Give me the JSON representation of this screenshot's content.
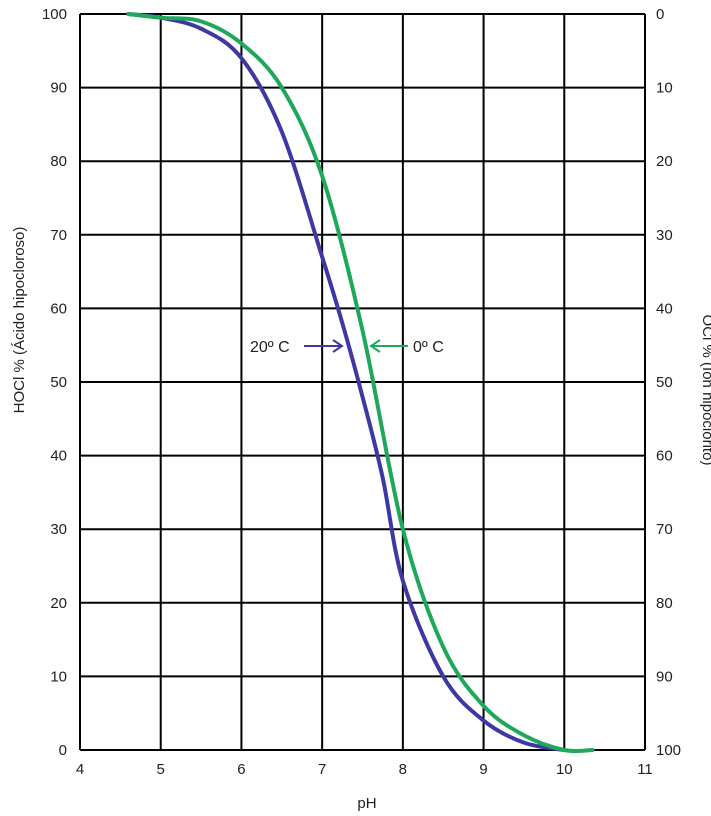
{
  "chart_data": {
    "type": "line",
    "xlabel": "pH",
    "ylabel_left": "HOCl % (Ácido hipocloroso)",
    "ylabel_right": "OCl % (Ion hipoclorito)",
    "xlim": [
      4,
      11
    ],
    "ylim": [
      0,
      100
    ],
    "x_ticks": [
      "4",
      "5",
      "6",
      "7",
      "8",
      "9",
      "10",
      "11"
    ],
    "y_ticks_left": [
      "0",
      "10",
      "20",
      "30",
      "40",
      "50",
      "60",
      "70",
      "80",
      "90",
      "100"
    ],
    "y_ticks_right": [
      "100",
      "90",
      "80",
      "70",
      "60",
      "50",
      "40",
      "30",
      "20",
      "10",
      "0"
    ],
    "grid": true,
    "series": [
      {
        "name": "20º C",
        "color": "#3f37a3",
        "x": [
          4.6,
          5.0,
          5.5,
          6.0,
          6.5,
          7.0,
          7.25,
          7.5,
          7.75,
          8.0,
          8.5,
          9.0,
          9.5,
          10.0
        ],
        "y": [
          100,
          99.5,
          98,
          94,
          84,
          67,
          58,
          48,
          37,
          23,
          10,
          4,
          1,
          0
        ]
      },
      {
        "name": "0º C",
        "color": "#1fa85a",
        "x": [
          4.6,
          5.0,
          5.5,
          6.0,
          6.5,
          7.0,
          7.5,
          8.0,
          8.5,
          9.0,
          9.5,
          10.0,
          10.35
        ],
        "y": [
          100,
          99.5,
          99,
          96,
          90,
          78,
          57,
          30,
          14,
          6,
          2,
          0,
          0
        ]
      }
    ],
    "annotations": [
      {
        "text": "20º C",
        "series": "20º C",
        "arrow": "right"
      },
      {
        "text": "0º C",
        "series": "0º C",
        "arrow": "left"
      }
    ]
  }
}
